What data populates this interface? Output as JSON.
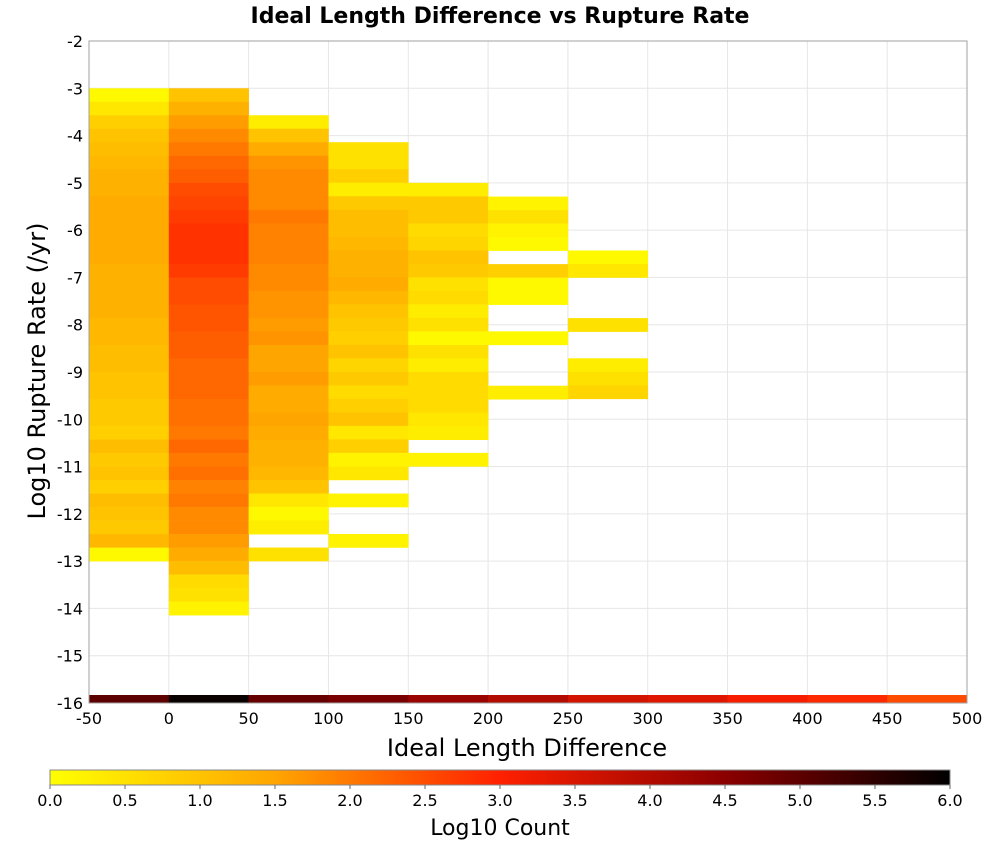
{
  "chart_data": {
    "type": "heatmap",
    "title": "Ideal Length Difference vs Rupture Rate",
    "xlabel": "Ideal Length Difference",
    "ylabel": "Log10 Rupture Rate (/yr)",
    "xlim": [
      -50,
      500
    ],
    "ylim": [
      -16,
      -2
    ],
    "x_ticks": [
      "-50",
      "0",
      "50",
      "100",
      "150",
      "200",
      "250",
      "300",
      "350",
      "400",
      "450",
      "500"
    ],
    "y_ticks": [
      "-2",
      "-3",
      "-4",
      "-5",
      "-6",
      "-7",
      "-8",
      "-9",
      "-10",
      "-11",
      "-12",
      "-13",
      "-14",
      "-15",
      "-16"
    ],
    "grid": true,
    "colorbar": {
      "label": "Log10 Count",
      "range": [
        0,
        6
      ],
      "ticks": [
        "0.0",
        "0.5",
        "1.0",
        "1.5",
        "2.0",
        "2.5",
        "3.0",
        "3.5",
        "4.0",
        "4.5",
        "5.0",
        "5.5",
        "6.0"
      ],
      "colors": [
        "#ffff00",
        "#ffa500",
        "#ff2000",
        "#8b0000",
        "#000000"
      ]
    },
    "x_bin_width": 50,
    "y_bin_height": 0.2857,
    "columns": [
      {
        "x_start": -50,
        "y_top": -3.0,
        "values": [
          0.1,
          0.4,
          0.8,
          1.0,
          1.1,
          1.2,
          1.3,
          1.3,
          1.4,
          1.4,
          1.4,
          1.4,
          1.4,
          1.3,
          1.3,
          1.3,
          1.3,
          1.2,
          1.2,
          1.1,
          1.1,
          1.0,
          1.0,
          0.9,
          0.9,
          0.8,
          1.1,
          0.9,
          1.0,
          0.8,
          1.1,
          1.0,
          0.9,
          1.2,
          0.1
        ]
      },
      {
        "x_start": 0,
        "y_top": -3.0,
        "values": [
          1.0,
          1.3,
          1.6,
          1.8,
          2.0,
          2.2,
          2.3,
          2.5,
          2.6,
          2.7,
          2.8,
          2.8,
          2.8,
          2.7,
          2.5,
          2.5,
          2.4,
          2.4,
          2.3,
          2.3,
          2.2,
          2.2,
          2.2,
          2.1,
          2.1,
          2.0,
          2.2,
          2.0,
          2.1,
          1.9,
          2.0,
          1.8,
          1.8,
          1.6,
          1.4,
          1.1,
          0.6,
          0.5,
          0.2
        ]
      },
      {
        "x_start": 50,
        "y_top": -3.57,
        "values": [
          0.3,
          1.0,
          1.4,
          1.7,
          1.8,
          1.8,
          1.8,
          2.0,
          1.9,
          1.9,
          1.9,
          1.8,
          1.8,
          1.7,
          1.7,
          1.6,
          1.7,
          1.5,
          1.5,
          1.6,
          1.4,
          1.4,
          1.5,
          1.4,
          1.3,
          1.3,
          1.2,
          1.0,
          0.4,
          0.1,
          0.5,
          null,
          0.5
        ]
      },
      {
        "x_start": 100,
        "y_top": -4.14,
        "values": [
          0.5,
          0.5,
          0.8,
          0.3,
          0.9,
          1.1,
          1.1,
          1.2,
          1.3,
          1.3,
          1.4,
          1.2,
          1.0,
          0.9,
          0.8,
          1.0,
          0.7,
          0.9,
          0.6,
          0.8,
          1.0,
          0.4,
          0.8,
          null,
          0.4,
          null,
          null,
          null,
          null,
          0.2
        ]
      },
      {
        "x_start": 150,
        "y_top": -5.0,
        "values": [
          0.3,
          0.9,
          0.9,
          0.6,
          0.7,
          1.0,
          0.9,
          0.5,
          0.6,
          0.3,
          0.5,
          0.1,
          0.5,
          0.3,
          0.6,
          0.6,
          0.6,
          0.6,
          0.4
        ]
      },
      {
        "x_start": 200,
        "y_top": -5.29,
        "values": [
          0.2,
          0.5,
          0.2,
          0.1,
          null,
          0.8,
          0.1,
          0.1
        ]
      },
      {
        "x_start": 250,
        "y_top": -6.43,
        "values": [
          0.1,
          0.4
        ]
      },
      {
        "x_start": 250,
        "y_top": -7.86,
        "values": [
          0.5
        ]
      },
      {
        "x_start": 250,
        "y_top": -8.71,
        "values": [
          0.3,
          0.5,
          0.7
        ]
      },
      {
        "x_start": 200,
        "y_top": -8.14,
        "values": [
          0.1
        ]
      },
      {
        "x_start": 200,
        "y_top": -9.29,
        "values": [
          0.3
        ]
      },
      {
        "x_start": 150,
        "y_top": -9.86,
        "values": [
          0.4,
          0.3
        ]
      },
      {
        "x_start": 150,
        "y_top": -10.71,
        "values": [
          0.2
        ]
      },
      {
        "x_start": 100,
        "y_top": -10.71,
        "values": [
          0.2
        ]
      },
      {
        "x_start": 100,
        "y_top": -11.57,
        "values": [
          0.2
        ]
      },
      {
        "x_start": 50,
        "y_top": -12.14,
        "values": [
          0.3
        ]
      }
    ],
    "bottom_strip": [
      5.0,
      5.9,
      4.9,
      4.7,
      4.3,
      4.0,
      3.6,
      3.4,
      3.1,
      2.9,
      2.5
    ]
  }
}
